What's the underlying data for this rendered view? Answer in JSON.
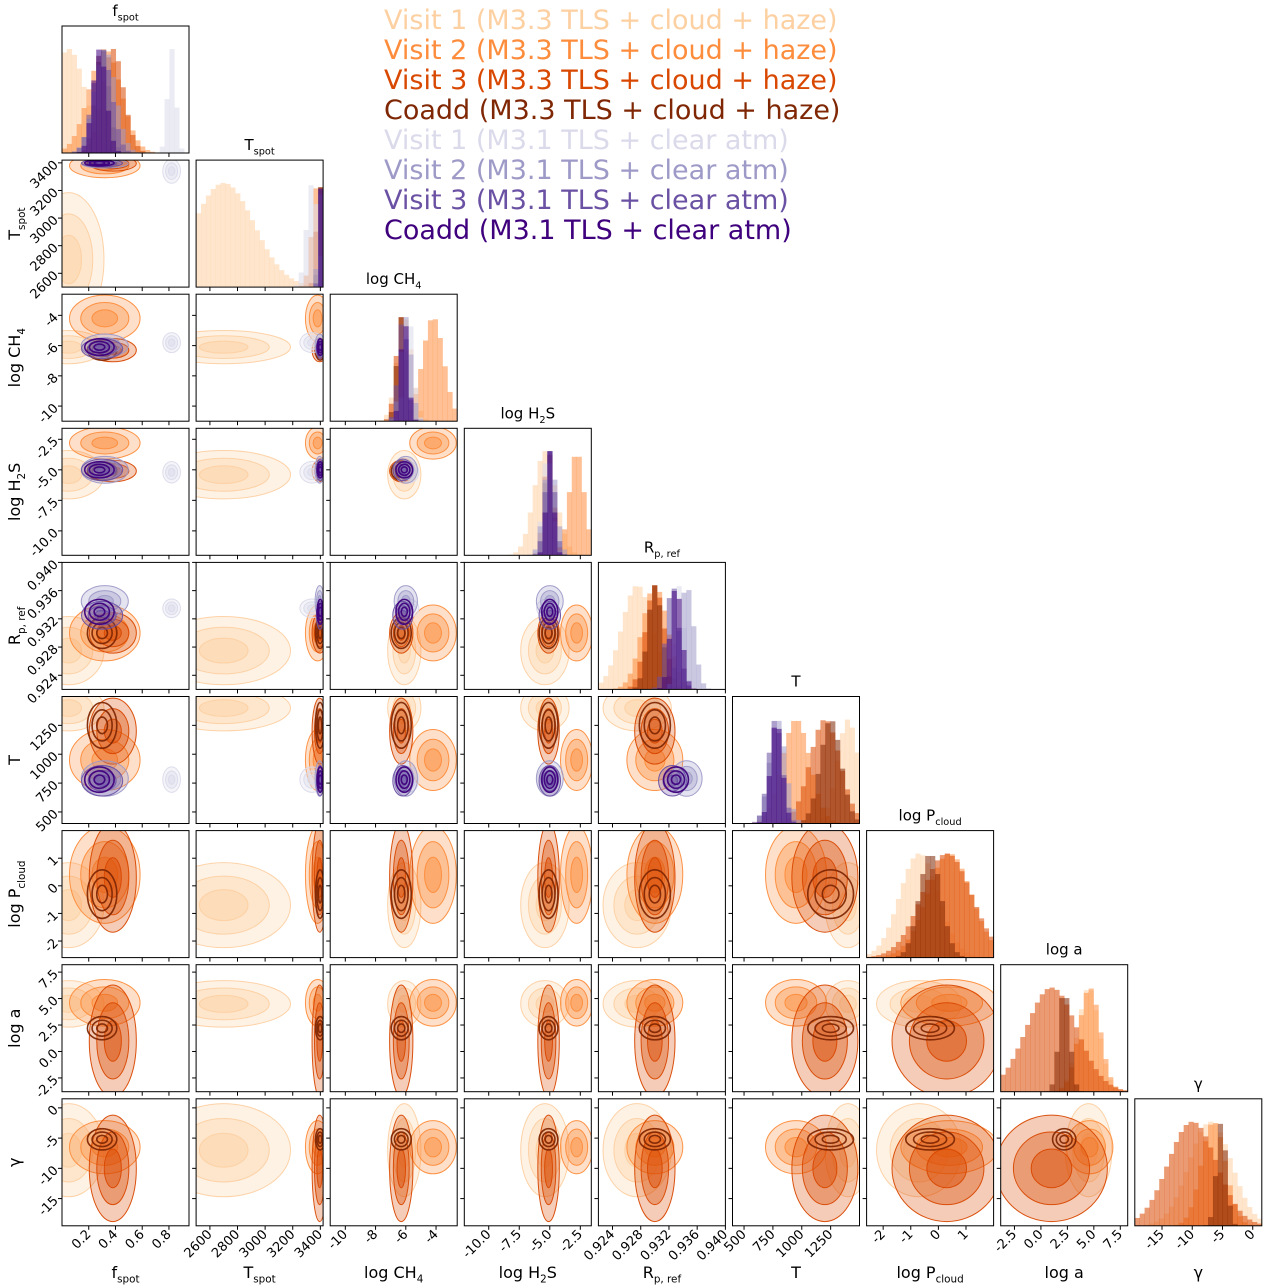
{
  "chart_data": {
    "type": "corner",
    "title": "",
    "parameters": [
      {
        "key": "fspot",
        "label": "f",
        "sub": "spot",
        "range": [
          0.0,
          0.95
        ],
        "ticks": [
          0.2,
          0.4,
          0.6,
          0.8
        ],
        "tick_labels": [
          "0.2",
          "0.4",
          "0.6",
          "0.8"
        ]
      },
      {
        "key": "Tspot",
        "label": "T",
        "sub": "spot",
        "range": [
          2500,
          3420
        ],
        "ticks": [
          2600,
          2800,
          3000,
          3200,
          3400
        ],
        "tick_labels": [
          "2600",
          "2800",
          "3000",
          "3200",
          "3400"
        ]
      },
      {
        "key": "logCH4",
        "label": "log CH",
        "sub4": "4",
        "range": [
          -11.0,
          -2.6
        ],
        "ticks": [
          -10,
          -8,
          -6,
          -4
        ],
        "tick_labels": [
          "-10",
          "-8",
          "-6",
          "-4"
        ]
      },
      {
        "key": "logH2S",
        "label": "log H",
        "sub2": "2",
        "tail": "S",
        "range": [
          -12.0,
          -1.6
        ],
        "ticks": [
          -10.0,
          -7.5,
          -5.0,
          -2.5
        ],
        "tick_labels": [
          "-10.0",
          "-7.5",
          "-5.0",
          "-2.5"
        ]
      },
      {
        "key": "Rpref",
        "label": "R",
        "sub": "p, ref",
        "range": [
          0.922,
          0.94
        ],
        "ticks": [
          0.924,
          0.928,
          0.932,
          0.936,
          0.94
        ],
        "tick_labels": [
          "0.924",
          "0.928",
          "0.932",
          "0.936",
          "0.940"
        ]
      },
      {
        "key": "T",
        "label": "T",
        "range": [
          400,
          1500
        ],
        "ticks": [
          500,
          750,
          1000,
          1250
        ],
        "tick_labels": [
          "500",
          "750",
          "1000",
          "1250"
        ]
      },
      {
        "key": "logPcloud",
        "label": "log P",
        "sub": "cloud",
        "range": [
          -2.6,
          2.0
        ],
        "ticks": [
          -2,
          -1,
          0,
          1
        ],
        "tick_labels": [
          "-2",
          "-1",
          "0",
          "1"
        ]
      },
      {
        "key": "loga",
        "label": "log a",
        "range": [
          -3.8,
          8.2
        ],
        "ticks": [
          -2.5,
          0.0,
          2.5,
          5.0,
          7.5
        ],
        "tick_labels": [
          "-2.5",
          "0.0",
          "2.5",
          "5.0",
          "7.5"
        ]
      },
      {
        "key": "gamma",
        "label": "γ",
        "range": [
          -19.5,
          1.5
        ],
        "ticks": [
          -15,
          -10,
          -5,
          0
        ],
        "tick_labels": [
          "-15",
          "-10",
          "-5",
          "0"
        ]
      }
    ],
    "series": [
      {
        "name": "Visit 1 (M3.3 TLS + cloud + haze)",
        "color": "#fdd0a2",
        "model": "M3.3",
        "params": {
          "fspot": [
            0.05,
            0.12
          ],
          "Tspot": [
            2700,
            220
          ],
          "logCH4": [
            -6.1,
            0.5
          ],
          "logH2S": [
            -5.4,
            0.9
          ],
          "Rpref": [
            0.9275,
            0.0022
          ],
          "T": [
            1400,
            90
          ],
          "logPcloud": [
            -0.7,
            0.7
          ],
          "loga": [
            4.5,
            1.0
          ],
          "gamma": [
            -7.0,
            3.5
          ]
        }
      },
      {
        "name": "Visit 2 (M3.3 TLS + cloud + haze)",
        "color": "#fd8d3c",
        "model": "M3.3",
        "params": {
          "fspot": [
            0.32,
            0.12
          ],
          "Tspot": [
            3380,
            40
          ],
          "logCH4": [
            -4.2,
            0.7
          ],
          "logH2S": [
            -2.8,
            0.6
          ],
          "Rpref": [
            0.93,
            0.0018
          ],
          "T": [
            950,
            120
          ],
          "logPcloud": [
            0.4,
            0.8
          ],
          "loga": [
            4.6,
            1.0
          ],
          "gamma": [
            -6.5,
            2.0
          ]
        }
      },
      {
        "name": "Visit 3 (M3.3 TLS + cloud + haze)",
        "color": "#d94801",
        "model": "M3.3",
        "params": {
          "fspot": [
            0.38,
            0.08
          ],
          "Tspot": [
            3395,
            25
          ],
          "logCH4": [
            -6.3,
            0.35
          ],
          "logH2S": [
            -5.1,
            0.4
          ],
          "Rpref": [
            0.93,
            0.0013
          ],
          "T": [
            1200,
            130
          ],
          "logPcloud": [
            0.3,
            0.9
          ],
          "loga": [
            1.0,
            2.4
          ],
          "gamma": [
            -10.0,
            4.0
          ]
        }
      },
      {
        "name": "Coadd (M3.3 TLS + cloud + haze)",
        "color": "#7f2704",
        "model": "M3.3",
        "params": {
          "fspot": [
            0.3,
            0.05
          ],
          "Tspot": [
            3398,
            15
          ],
          "logCH4": [
            -6.3,
            0.3
          ],
          "logH2S": [
            -5.1,
            0.35
          ],
          "Rpref": [
            0.93,
            0.001
          ],
          "T": [
            1250,
            90
          ],
          "logPcloud": [
            -0.3,
            0.4
          ],
          "loga": [
            2.2,
            0.5
          ],
          "gamma": [
            -5.2,
            0.8
          ]
        }
      },
      {
        "name": "Visit 1 (M3.1 TLS + clear atm)",
        "color": "#dadaeb",
        "model": "M3.1",
        "params": {
          "fspot": [
            0.82,
            0.03
          ],
          "Tspot": [
            3340,
            40
          ],
          "logCH4": [
            -5.8,
            0.3
          ],
          "logH2S": [
            -5.2,
            0.4
          ],
          "Rpref": [
            0.9335,
            0.0006
          ],
          "T": [
            780,
            50
          ],
          "logPcloud": null,
          "loga": null,
          "gamma": null
        }
      },
      {
        "name": "Visit 2 (M3.1 TLS + clear atm)",
        "color": "#9e9ac8",
        "model": "M3.1",
        "params": {
          "fspot": [
            0.32,
            0.08
          ],
          "Tspot": [
            3395,
            15
          ],
          "logCH4": [
            -6.0,
            0.35
          ],
          "logH2S": [
            -5.0,
            0.5
          ],
          "Rpref": [
            0.9345,
            0.001
          ],
          "T": [
            790,
            70
          ],
          "logPcloud": null,
          "loga": null,
          "gamma": null
        }
      },
      {
        "name": "Visit 3 (M3.1 TLS + clear atm)",
        "color": "#6a51a3",
        "model": "M3.1",
        "params": {
          "fspot": [
            0.3,
            0.07
          ],
          "Tspot": [
            3398,
            12
          ],
          "logCH4": [
            -6.2,
            0.3
          ],
          "logH2S": [
            -5.0,
            0.4
          ],
          "Rpref": [
            0.9325,
            0.0009
          ],
          "T": [
            770,
            60
          ],
          "logPcloud": null,
          "loga": null,
          "gamma": null
        }
      },
      {
        "name": "Coadd (M3.1 TLS + clear atm)",
        "color": "#3f007d",
        "model": "M3.1",
        "params": {
          "fspot": [
            0.28,
            0.05
          ],
          "Tspot": [
            3399,
            10
          ],
          "logCH4": [
            -6.1,
            0.25
          ],
          "logH2S": [
            -5.0,
            0.3
          ],
          "Rpref": [
            0.933,
            0.0008
          ],
          "T": [
            780,
            50
          ],
          "logPcloud": null,
          "loga": null,
          "gamma": null
        }
      }
    ]
  }
}
